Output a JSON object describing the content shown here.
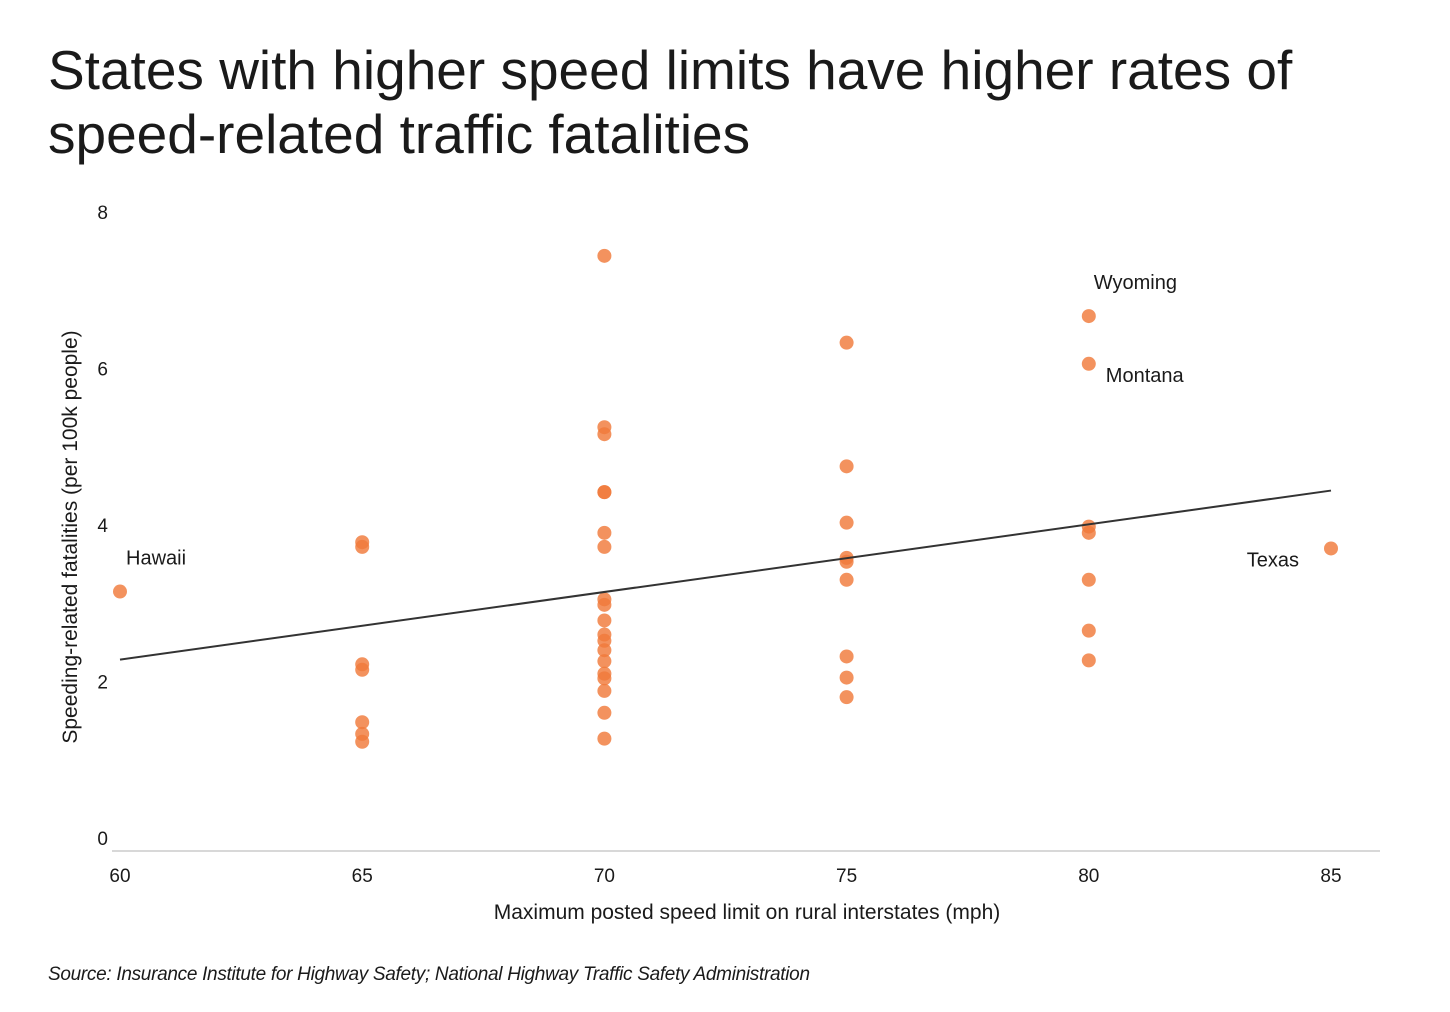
{
  "title": "States with higher speed limits have higher rates of speed-related traffic fatalities",
  "source": "Source: Insurance Institute for Highway Safety; National Highway Traffic Safety Administration",
  "chart_data": {
    "type": "scatter",
    "xlabel": "Maximum posted speed limit on rural interstates (mph)",
    "ylabel": "Speeding-related fatalities (per 100k people)",
    "xlim": [
      60,
      85
    ],
    "ylim": [
      0,
      8
    ],
    "x_ticks": [
      60,
      65,
      70,
      75,
      80,
      85
    ],
    "y_ticks": [
      0,
      2,
      4,
      6,
      8
    ],
    "grid": false,
    "point_color": "#f07a3a",
    "trendline_color": "#333333",
    "trendline": {
      "x": [
        60,
        85
      ],
      "y": [
        2.28,
        4.44
      ]
    },
    "points": [
      {
        "x": 60,
        "y": 3.15
      },
      {
        "x": 65,
        "y": 3.78
      },
      {
        "x": 65,
        "y": 3.72
      },
      {
        "x": 65,
        "y": 2.22
      },
      {
        "x": 65,
        "y": 2.15
      },
      {
        "x": 65,
        "y": 1.48
      },
      {
        "x": 65,
        "y": 1.33
      },
      {
        "x": 65,
        "y": 1.23
      },
      {
        "x": 70,
        "y": 7.44
      },
      {
        "x": 70,
        "y": 5.25
      },
      {
        "x": 70,
        "y": 5.16
      },
      {
        "x": 70,
        "y": 4.42
      },
      {
        "x": 70,
        "y": 4.42
      },
      {
        "x": 70,
        "y": 3.9
      },
      {
        "x": 70,
        "y": 3.72
      },
      {
        "x": 70,
        "y": 3.05
      },
      {
        "x": 70,
        "y": 2.98
      },
      {
        "x": 70,
        "y": 2.78
      },
      {
        "x": 70,
        "y": 2.6
      },
      {
        "x": 70,
        "y": 2.52
      },
      {
        "x": 70,
        "y": 2.4
      },
      {
        "x": 70,
        "y": 2.26
      },
      {
        "x": 70,
        "y": 2.1
      },
      {
        "x": 70,
        "y": 2.04
      },
      {
        "x": 70,
        "y": 1.88
      },
      {
        "x": 70,
        "y": 1.6
      },
      {
        "x": 70,
        "y": 1.27
      },
      {
        "x": 75,
        "y": 6.33
      },
      {
        "x": 75,
        "y": 4.75
      },
      {
        "x": 75,
        "y": 4.03
      },
      {
        "x": 75,
        "y": 3.58
      },
      {
        "x": 75,
        "y": 3.53
      },
      {
        "x": 75,
        "y": 3.3
      },
      {
        "x": 75,
        "y": 2.32
      },
      {
        "x": 75,
        "y": 2.05
      },
      {
        "x": 75,
        "y": 1.8
      },
      {
        "x": 80,
        "y": 6.67
      },
      {
        "x": 80,
        "y": 6.06
      },
      {
        "x": 80,
        "y": 3.98
      },
      {
        "x": 80,
        "y": 3.9
      },
      {
        "x": 80,
        "y": 3.3
      },
      {
        "x": 80,
        "y": 2.65
      },
      {
        "x": 80,
        "y": 2.27
      },
      {
        "x": 85,
        "y": 3.7
      }
    ],
    "annotations": [
      {
        "text": "Hawaii",
        "x": 60,
        "y": 3.15,
        "anchor": "start",
        "dx": 6,
        "dy": -27
      },
      {
        "text": "Wyoming",
        "x": 80,
        "y": 6.67,
        "anchor": "start",
        "dx": 5,
        "dy": -27
      },
      {
        "text": "Montana",
        "x": 80,
        "y": 6.06,
        "anchor": "start",
        "dx": 17,
        "dy": 18
      },
      {
        "text": "Texas",
        "x": 85,
        "y": 3.7,
        "anchor": "end",
        "dx": -32,
        "dy": 18
      }
    ]
  }
}
